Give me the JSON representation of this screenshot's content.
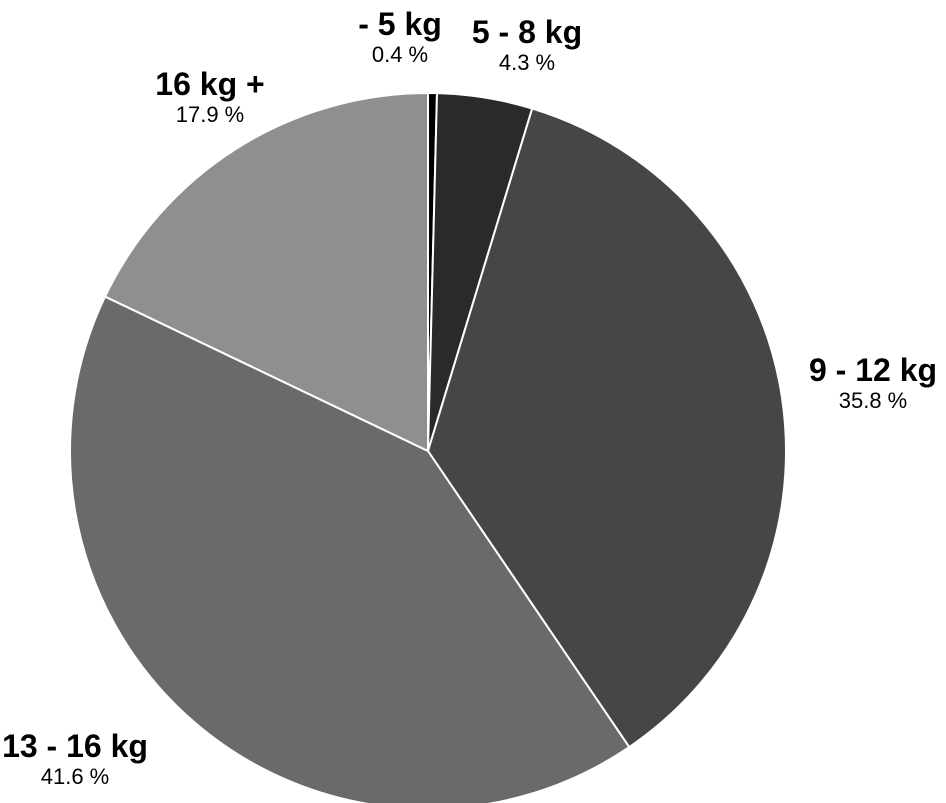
{
  "chart_data": {
    "type": "pie",
    "slices": [
      {
        "name": "- 5 kg",
        "value": 0.4,
        "label": "0.4 %",
        "color": "#000000"
      },
      {
        "name": "5 - 8 kg",
        "value": 4.3,
        "label": "4.3 %",
        "color": "#2a2a2a"
      },
      {
        "name": "9 - 12 kg",
        "value": 35.8,
        "label": "35.8 %",
        "color": "#464646"
      },
      {
        "name": "13 - 16 kg",
        "value": 41.6,
        "label": "41.6 %",
        "color": "#6a6a6a"
      },
      {
        "name": "16 kg +",
        "value": 17.9,
        "label": "17.9 %",
        "color": "#8f8f8f"
      }
    ],
    "start_angle": "12 o'clock",
    "direction": "clockwise",
    "slice_border_color": "#ffffff"
  }
}
